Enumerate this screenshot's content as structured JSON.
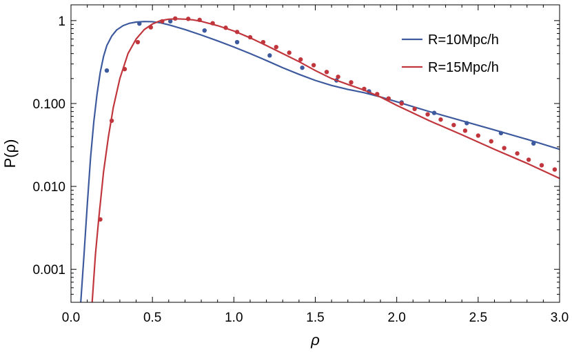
{
  "chart_data": {
    "type": "line",
    "xlabel": "ρ",
    "ylabel": "P(ρ)",
    "yscale": "log",
    "xlim": [
      0,
      3.0
    ],
    "ylim": [
      0.0004,
      1.55
    ],
    "xticks": [
      0.0,
      0.5,
      1.0,
      1.5,
      2.0,
      2.5,
      3.0
    ],
    "xtick_labels": [
      "0.0",
      "0.5",
      "1.0",
      "1.5",
      "2.0",
      "2.5",
      "3.0"
    ],
    "yticks": [
      1,
      0.1,
      0.01,
      0.001
    ],
    "ytick_labels": [
      "1",
      "0.100",
      "0.010",
      "0.001"
    ],
    "grid": false,
    "legend_position": "top-right",
    "series": [
      {
        "name": "R=10Mpc/h",
        "color": "#3d5a9e",
        "line": {
          "x": [
            0.06,
            0.08,
            0.1,
            0.12,
            0.14,
            0.16,
            0.18,
            0.2,
            0.22,
            0.25,
            0.28,
            0.32,
            0.36,
            0.4,
            0.45,
            0.5,
            0.55,
            0.6,
            0.7,
            0.8,
            0.9,
            1.0,
            1.1,
            1.2,
            1.3,
            1.4,
            1.5,
            1.6,
            1.7,
            1.8,
            1.9,
            2.0,
            2.2,
            2.4,
            2.6,
            2.8,
            3.0
          ],
          "y": [
            0.0004,
            0.0015,
            0.006,
            0.022,
            0.06,
            0.13,
            0.24,
            0.37,
            0.5,
            0.65,
            0.77,
            0.87,
            0.93,
            0.96,
            0.975,
            0.97,
            0.94,
            0.89,
            0.78,
            0.67,
            0.57,
            0.48,
            0.4,
            0.33,
            0.27,
            0.225,
            0.19,
            0.165,
            0.148,
            0.135,
            0.12,
            0.105,
            0.08,
            0.062,
            0.048,
            0.037,
            0.028
          ]
        },
        "points": {
          "x": [
            0.22,
            0.42,
            0.61,
            0.82,
            1.02,
            1.22,
            1.42,
            1.63,
            1.83,
            2.03,
            2.23,
            2.43,
            2.64,
            2.84
          ],
          "y": [
            0.25,
            0.92,
            0.98,
            0.76,
            0.55,
            0.38,
            0.27,
            0.19,
            0.14,
            0.103,
            0.077,
            0.058,
            0.044,
            0.033
          ]
        }
      },
      {
        "name": "R=15Mpc/h",
        "color": "#c0363c",
        "line": {
          "x": [
            0.13,
            0.15,
            0.17,
            0.2,
            0.23,
            0.26,
            0.3,
            0.35,
            0.4,
            0.45,
            0.5,
            0.55,
            0.6,
            0.65,
            0.7,
            0.75,
            0.8,
            0.9,
            1.0,
            1.1,
            1.2,
            1.3,
            1.4,
            1.5,
            1.6,
            1.7,
            1.8,
            1.9,
            2.0,
            2.2,
            2.4,
            2.6,
            2.8,
            3.0
          ],
          "y": [
            0.0004,
            0.0015,
            0.004,
            0.015,
            0.04,
            0.09,
            0.2,
            0.4,
            0.6,
            0.78,
            0.91,
            1.0,
            1.04,
            1.05,
            1.04,
            1.02,
            0.98,
            0.87,
            0.75,
            0.62,
            0.5,
            0.4,
            0.32,
            0.25,
            0.2,
            0.17,
            0.145,
            0.12,
            0.095,
            0.062,
            0.042,
            0.028,
            0.019,
            0.0125
          ]
        },
        "points": {
          "x": [
            0.18,
            0.25,
            0.33,
            0.41,
            0.49,
            0.56,
            0.64,
            0.72,
            0.79,
            0.87,
            0.95,
            1.02,
            1.1,
            1.18,
            1.26,
            1.34,
            1.41,
            1.49,
            1.57,
            1.64,
            1.72,
            1.8,
            1.88,
            1.95,
            2.03,
            2.11,
            2.19,
            2.27,
            2.35,
            2.42,
            2.5,
            2.58,
            2.66,
            2.74,
            2.81,
            2.89,
            2.97
          ],
          "y": [
            0.004,
            0.062,
            0.26,
            0.55,
            0.83,
            0.98,
            1.06,
            1.05,
            1.02,
            0.93,
            0.82,
            0.73,
            0.63,
            0.55,
            0.48,
            0.41,
            0.34,
            0.29,
            0.24,
            0.21,
            0.18,
            0.15,
            0.13,
            0.115,
            0.1,
            0.086,
            0.074,
            0.064,
            0.055,
            0.047,
            0.041,
            0.035,
            0.029,
            0.025,
            0.021,
            0.018,
            0.016
          ]
        }
      }
    ]
  }
}
